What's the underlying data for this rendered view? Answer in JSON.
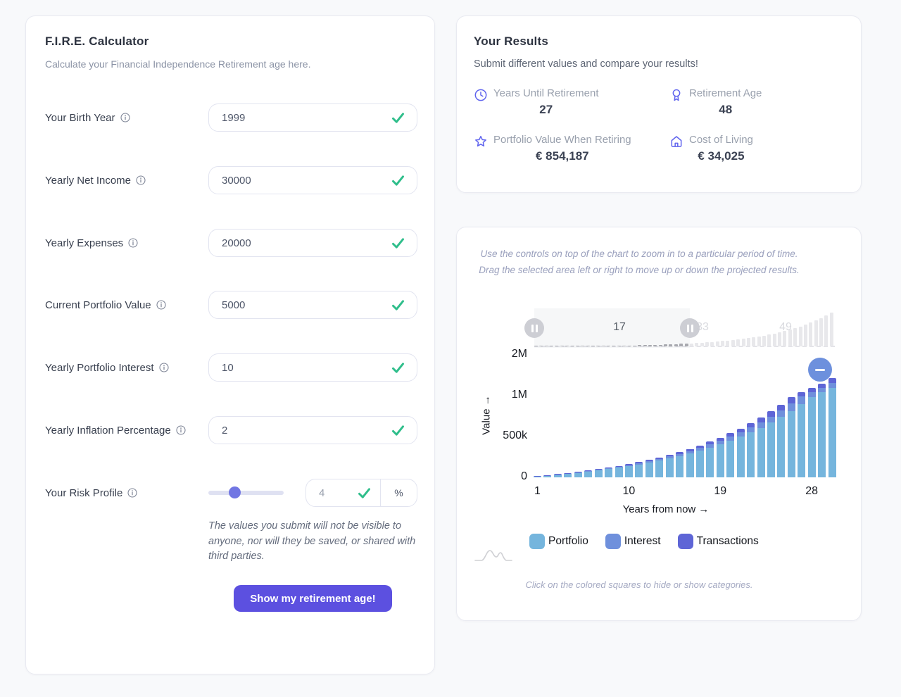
{
  "theme": {
    "accent": "#5c50e0",
    "result_icon_color": "#6064ee",
    "check_green": "#2fbe8b",
    "portfolio_blue": "#75b5dd",
    "interest_blue": "#6f90dc",
    "transactions_indigo": "#5e65d6"
  },
  "calculator": {
    "title": "F.I.R.E. Calculator",
    "subtitle": "Calculate your Financial Independence Retirement age here.",
    "fields": [
      {
        "label": "Your Birth Year",
        "value": "1999"
      },
      {
        "label": "Yearly Net Income",
        "value": "30000"
      },
      {
        "label": "Yearly Expenses",
        "value": "20000"
      },
      {
        "label": "Current Portfolio Value",
        "value": "5000"
      },
      {
        "label": "Yearly Portfolio Interest",
        "value": "10"
      },
      {
        "label": "Yearly Inflation Percentage",
        "value": "2"
      }
    ],
    "risk": {
      "label": "Your Risk Profile",
      "value": "4",
      "unit": "%"
    },
    "disclaimer": "The values you submit will not be visible to anyone, nor will they be saved, or shared with third parties.",
    "submit_label": "Show my retirement age!"
  },
  "results": {
    "title": "Your Results",
    "subtitle": "Submit different values and compare your results!",
    "stats": [
      {
        "icon": "clock-icon",
        "label": "Years Until Retirement",
        "value": "27"
      },
      {
        "icon": "medal-icon",
        "label": "Retirement Age",
        "value": "48"
      },
      {
        "icon": "star-icon",
        "label": "Portfolio Value When Retiring",
        "value": "€ 854,187"
      },
      {
        "icon": "home-icon",
        "label": "Cost of Living",
        "value": "€ 34,025"
      }
    ]
  },
  "chart_card": {
    "instructions": [
      "Use the controls on top of the chart to zoom in to a particular period of time.",
      "Drag the selected area left or right to move up or down the projected results."
    ],
    "footnote": "Click on the colored squares to hide or show categories."
  },
  "chart_data": {
    "type": "bar",
    "stacked": true,
    "xlabel": "Years from now →",
    "ylabel": "Value →",
    "x_start_year": 1,
    "x_tick_years": [
      1,
      10,
      19,
      28
    ],
    "y_ticks": [
      {
        "label": "2M",
        "value": 2000000
      },
      {
        "label": "1M",
        "value": 1000000
      },
      {
        "label": "500k",
        "value": 500000
      },
      {
        "label": "0",
        "value": 0
      }
    ],
    "y_scale_stops": [
      [
        0,
        0
      ],
      [
        500000,
        58
      ],
      [
        1000000,
        116
      ],
      [
        2000000,
        174
      ]
    ],
    "series": [
      {
        "name": "Portfolio",
        "color": "#75b5dd",
        "values": [
          12823,
          22278,
          32583,
          43815,
          56058,
          69403,
          83949,
          99805,
          117088,
          135926,
          156460,
          178840,
          203236,
          229827,
          258811,
          290404,
          324841,
          362377,
          403292,
          447887,
          496497,
          549482,
          607235,
          670186,
          738803,
          813595,
          895119,
          983979,
          1080838,
          1186413
        ]
      },
      {
        "name": "Interest",
        "color": "#6f90dc",
        "values": [
          1391,
          2416,
          3533,
          4751,
          6079,
          7526,
          9103,
          10822,
          12696,
          14739,
          16965,
          19392,
          22038,
          24921,
          28064,
          31490,
          35224,
          39294,
          43730,
          48566,
          53837,
          59582,
          65845,
          72671,
          80111,
          88221,
          97061,
          106697,
          117199,
          128647
        ]
      },
      {
        "name": "Transactions",
        "color": "#5e65d6",
        "values": [
          1236,
          2147,
          3140,
          4223,
          5403,
          6690,
          8092,
          9620,
          11286,
          13101,
          15080,
          17238,
          19589,
          22152,
          24946,
          27991,
          31310,
          34928,
          38871,
          43170,
          47855,
          52962,
          58529,
          64596,
          71210,
          78419,
          86276,
          94841,
          104177,
          114353
        ]
      }
    ],
    "brush": {
      "full_range": [
        1,
        58
      ],
      "selected_range": [
        1,
        30
      ],
      "tick_years": [
        17,
        33,
        49
      ],
      "overview_values": [
        15450,
        26841,
        39256,
        52789,
        67540,
        83619,
        101144,
        120247,
        141070,
        163766,
        188505,
        215470,
        244863,
        276900,
        311821,
        349885,
        391375,
        436599,
        485893,
        539623,
        598189,
        662026,
        731609,
        807453,
        890124,
        980235,
        1078456,
        1185517,
        1302214,
        1429413,
        1568060,
        1719185,
        1883912,
        2063464,
        2259176,
        2472502,
        2705027,
        2958480,
        3234743,
        3535870,
        3864098,
        4221867,
        4611835,
        5036900,
        5500221,
        6005241,
        6555713,
        7155727,
        7809742,
        8522619,
        9299655,
        10146624,
        11069820,
        12076104,
        13172953,
        14368519,
        15671686,
        17092138
      ]
    }
  }
}
